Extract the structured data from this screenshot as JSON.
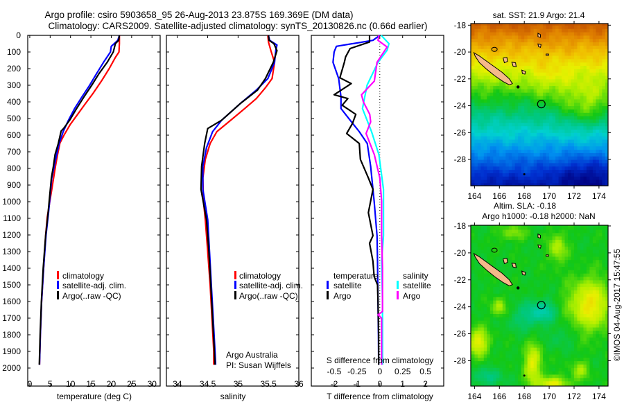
{
  "title": {
    "line1": "Argo profile: csiro 5903658_95 26-Aug-2013 23.875S 169.369E (DM data)",
    "line2": "Climatology: CARS2009. Satellite-adjusted climatology: synTS_20130826.nc (0.66d earlier)"
  },
  "credits": {
    "line1": "Argo Australia",
    "line2": "PI: Susan Wijffels"
  },
  "footer": "©IMOS 04-Aug-2017 15:47:55",
  "colors": {
    "climatology": "#ff0000",
    "satellite": "#0000ff",
    "argo": "#000000",
    "s_satellite": "#00ffff",
    "s_argo": "#ff00ff"
  },
  "depth_ticks": [
    "0",
    "100",
    "200",
    "300",
    "400",
    "500",
    "600",
    "700",
    "800",
    "900",
    "1000",
    "1100",
    "1200",
    "1300",
    "1400",
    "1500",
    "1600",
    "1700",
    "1800",
    "1900",
    "2000"
  ],
  "chart_data": [
    {
      "type": "line",
      "id": "temperature",
      "xlabel": "temperature (deg C)",
      "ylabel": "depth",
      "xlim": [
        -0.5,
        32
      ],
      "ylim": [
        2108,
        0
      ],
      "xticks": [
        "0",
        "5",
        "10",
        "15",
        "20",
        "25",
        "30"
      ],
      "legend": [
        "climatology",
        "satellite-adj. clim.",
        "Argo(..raw -QC)"
      ],
      "series": [
        {
          "name": "climatology",
          "color": "#ff0000",
          "depth": [
            0,
            50,
            100,
            133,
            200,
            274,
            350,
            412,
            480,
            537,
            600,
            648,
            720,
            787,
            926,
            1092,
            1200,
            1400,
            1600,
            1800,
            1980
          ],
          "values": [
            22.0,
            22.0,
            21.9,
            21.0,
            19.5,
            17.6,
            15.5,
            13.6,
            11.6,
            9.9,
            8.4,
            7.4,
            6.8,
            6.3,
            5.4,
            4.3,
            3.9,
            3.4,
            2.9,
            2.6,
            2.4
          ]
        },
        {
          "name": "satellite-adj. clim.",
          "color": "#0000ff",
          "depth": [
            0,
            30,
            66,
            100,
            162,
            230,
            300,
            370,
            440,
            510,
            579,
            650,
            717,
            787,
            857,
            1066,
            1200,
            1400,
            1600,
            1800,
            1980
          ],
          "values": [
            22.0,
            21.6,
            20.0,
            19.8,
            18.1,
            16.4,
            14.7,
            12.8,
            11.0,
            9.5,
            8.2,
            7.2,
            6.6,
            6.0,
            5.4,
            4.6,
            4.0,
            3.4,
            2.9,
            2.6,
            2.4
          ]
        },
        {
          "name": "Argo(..raw -QC)",
          "color": "#000000",
          "depth": [
            0,
            30,
            50,
            100,
            162,
            230,
            300,
            370,
            440,
            510,
            560,
            575,
            650,
            717,
            787,
            857,
            1066,
            1200,
            1400,
            1600,
            1800,
            1980
          ],
          "values": [
            22.0,
            21.8,
            21.0,
            20.5,
            19.0,
            17.0,
            15.2,
            13.3,
            11.5,
            9.8,
            8.3,
            7.7,
            7.0,
            6.2,
            5.8,
            5.3,
            4.5,
            3.9,
            3.3,
            2.85,
            2.55,
            2.35
          ]
        }
      ]
    },
    {
      "type": "line",
      "id": "salinity",
      "xlabel": "salinity",
      "ylabel": "depth",
      "xlim": [
        33.82,
        36.0
      ],
      "ylim": [
        2108,
        0
      ],
      "xticks": [
        "34",
        "34.5",
        "35",
        "35.5",
        "36"
      ],
      "legend": [
        "climatology",
        "satellite-adj. clim.",
        "Argo(..raw -QC)"
      ],
      "series": [
        {
          "name": "climatology",
          "color": "#ff0000",
          "depth": [
            0,
            40,
            92,
            162,
            260,
            315,
            380,
            440,
            510,
            579,
            650,
            746,
            857,
            996,
            1108,
            1300,
            1500,
            1700,
            1900,
            1980
          ],
          "values": [
            35.49,
            35.5,
            35.54,
            35.6,
            35.56,
            35.45,
            35.3,
            35.11,
            34.88,
            34.65,
            34.54,
            34.46,
            34.42,
            34.43,
            34.46,
            34.5,
            34.54,
            34.57,
            34.6,
            34.6
          ]
        },
        {
          "name": "satellite-adj. clim.",
          "color": "#0000ff",
          "depth": [
            0,
            30,
            58,
            92,
            162,
            260,
            329,
            412,
            510,
            579,
            676,
            787,
            926,
            1108,
            1300,
            1500,
            1700,
            1900,
            1980
          ],
          "values": [
            35.5,
            35.52,
            35.64,
            35.62,
            35.6,
            35.49,
            35.3,
            35.03,
            34.73,
            34.58,
            34.48,
            34.42,
            34.42,
            34.5,
            34.53,
            34.56,
            34.59,
            34.62,
            34.63
          ]
        },
        {
          "name": "Argo(..raw -QC)",
          "color": "#000000",
          "depth": [
            0,
            30,
            50,
            92,
            162,
            260,
            329,
            412,
            510,
            560,
            650,
            787,
            926,
            1108,
            1300,
            1500,
            1700,
            1900,
            1980
          ],
          "values": [
            35.5,
            35.51,
            35.59,
            35.64,
            35.58,
            35.45,
            35.32,
            35.03,
            34.73,
            34.5,
            34.45,
            34.4,
            34.39,
            34.48,
            34.52,
            34.55,
            34.58,
            34.61,
            34.62
          ]
        }
      ]
    },
    {
      "type": "line",
      "id": "difference",
      "xlabel": "T difference from climatology",
      "xlabel_s": "S difference from climatology",
      "ylabel": "depth",
      "xlim": [
        -3.0,
        2.8
      ],
      "xlim_s": [
        -0.75,
        0.7
      ],
      "ylim": [
        2108,
        0
      ],
      "xticks": [
        "-2",
        "-1",
        "0",
        "1",
        "2"
      ],
      "xticks_s": [
        "-0.5",
        "-0.25",
        "0",
        "0.25",
        "0.5"
      ],
      "legend": {
        "temperature_header": "temperature",
        "salinity_header": "salinity",
        "t_satellite": "satellite",
        "t_argo": "Argo",
        "s_satellite": "satellite",
        "s_argo": "Argo"
      },
      "series": [
        {
          "name": "T satellite",
          "color": "#0000ff",
          "axis": "T",
          "depth": [
            0,
            30,
            66,
            100,
            162,
            260,
            371,
            440,
            510,
            579,
            650,
            787,
            996,
            1204,
            1358,
            1600,
            1800,
            1980
          ],
          "values": [
            0,
            -0.3,
            -1.9,
            -2.0,
            -2.05,
            -1.8,
            -1.7,
            -1.7,
            -1.3,
            -0.9,
            -0.55,
            -0.4,
            -0.25,
            -0.12,
            -0.1,
            -0.08,
            -0.06,
            -0.05
          ]
        },
        {
          "name": "T Argo",
          "color": "#000000",
          "axis": "T",
          "depth": [
            0,
            20,
            40,
            79,
            130,
            160,
            255,
            290,
            357,
            380,
            420,
            475,
            530,
            590,
            650,
            746,
            857,
            926,
            1066,
            1204,
            1250,
            1358,
            1450,
            1500,
            1600,
            1800,
            1980
          ],
          "values": [
            -0.45,
            -0.45,
            -0.45,
            -1.3,
            -1.5,
            -1.55,
            -1.75,
            -1.25,
            -2.0,
            -1.4,
            -1.65,
            -1.05,
            -1.2,
            -1.45,
            -0.9,
            -0.85,
            -0.5,
            -0.3,
            -0.5,
            -0.3,
            -0.45,
            -0.3,
            -0.25,
            -0.1,
            -0.08,
            -0.05,
            -0.05
          ]
        },
        {
          "name": "S satellite",
          "color": "#00ffff",
          "axis": "S",
          "depth": [
            0,
            50,
            90,
            162,
            300,
            440,
            579,
            717,
            926,
            1204,
            1358,
            1600,
            1980
          ],
          "values": [
            0.015,
            0.1,
            0.08,
            -0.02,
            -0.14,
            -0.19,
            -0.09,
            -0.01,
            0.04,
            0.04,
            0.02,
            0.03,
            0.03
          ]
        },
        {
          "name": "S Argo",
          "color": "#ff00ff",
          "axis": "S",
          "depth": [
            0,
            30,
            70,
            162,
            275,
            357,
            400,
            475,
            520,
            590,
            717,
            857,
            996,
            1200,
            1400,
            1660,
            1680,
            1700,
            1980
          ],
          "values": [
            -0.01,
            -0.02,
            0.08,
            -0.03,
            -0.06,
            -0.2,
            -0.18,
            -0.11,
            -0.1,
            -0.15,
            -0.06,
            0,
            0.02,
            0.02,
            0.03,
            0.03,
            -0.02,
            0.02,
            0.02
          ]
        }
      ]
    },
    {
      "type": "heatmap",
      "id": "sst-map",
      "title": "sat. SST: 21.9 Argo: 21.4",
      "xlim": [
        163.7,
        174.73
      ],
      "ylim": [
        -29.96,
        -17.88
      ],
      "xticks": [
        "164",
        "166",
        "168",
        "170",
        "172",
        "174"
      ],
      "yticks": [
        "-18",
        "-20",
        "-22",
        "-24",
        "-26",
        "-28"
      ],
      "argo_position": {
        "lon": 169.369,
        "lat": -23.875
      }
    },
    {
      "type": "heatmap",
      "id": "sla-map",
      "title": "Altim. SLA: -0.18",
      "subtitle": "Argo h1000: -0.18 h2000: NaN",
      "xlim": [
        163.7,
        174.73
      ],
      "ylim": [
        -29.88,
        -17.95
      ],
      "xticks": [
        "164",
        "166",
        "168",
        "170",
        "172",
        "174"
      ],
      "yticks": [
        "-18",
        "-20",
        "-22",
        "-24",
        "-26",
        "-28"
      ],
      "argo_position": {
        "lon": 169.369,
        "lat": -23.875
      }
    }
  ]
}
